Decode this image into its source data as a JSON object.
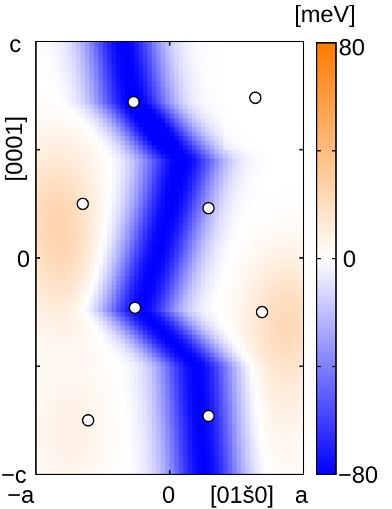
{
  "chart_data": {
    "type": "heatmap",
    "unit": "[meV]",
    "xlabel": "[01š0]",
    "ylabel": "[0001]",
    "x_ticks": [
      "−a",
      "0",
      "a"
    ],
    "y_ticks": [
      "c",
      "0",
      "−c"
    ],
    "colorbar": {
      "min": -80,
      "max": 80,
      "tick_labels": [
        "80",
        "0",
        "−80"
      ],
      "color_low": "#0000ff",
      "color_mid": "#ffffff",
      "color_high": "#ff7700"
    },
    "xlim": [
      -1,
      1
    ],
    "ylim": [
      -1,
      1
    ],
    "atoms": [
      {
        "x": -0.27,
        "y": 0.72
      },
      {
        "x": 0.64,
        "y": 0.74
      },
      {
        "x": -0.65,
        "y": 0.25
      },
      {
        "x": 0.29,
        "y": 0.23
      },
      {
        "x": -0.26,
        "y": -0.23
      },
      {
        "x": 0.69,
        "y": -0.25
      },
      {
        "x": -0.61,
        "y": -0.75
      },
      {
        "x": 0.29,
        "y": -0.73
      }
    ],
    "valley_path": [
      {
        "x": -0.35,
        "y": 1.0
      },
      {
        "x": -0.28,
        "y": 0.72
      },
      {
        "x": 0.1,
        "y": 0.45
      },
      {
        "x": -0.1,
        "y": 0.0
      },
      {
        "x": -0.22,
        "y": -0.24
      },
      {
        "x": 0.2,
        "y": -0.5
      },
      {
        "x": 0.26,
        "y": -1.0
      }
    ],
    "high_regions": [
      {
        "x": -0.85,
        "y": 0.25,
        "value": 18
      },
      {
        "x": -0.8,
        "y": -0.05,
        "value": 14
      },
      {
        "x": 0.88,
        "y": -0.3,
        "value": 22
      },
      {
        "x": -0.75,
        "y": -0.8,
        "value": 8
      },
      {
        "x": 0.75,
        "y": -0.8,
        "value": 6
      }
    ]
  }
}
